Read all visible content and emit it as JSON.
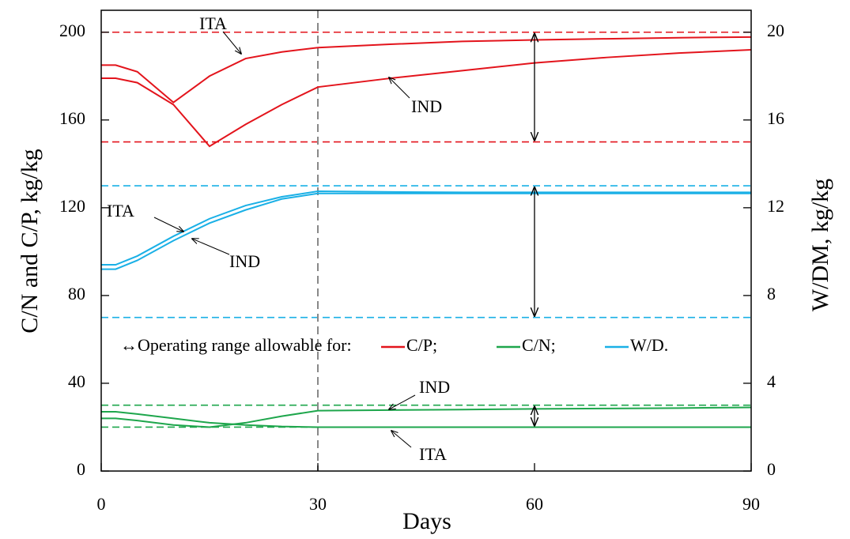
{
  "chart_data": {
    "type": "line",
    "x_label": "Days",
    "y_label": "C/N and C/P,  kg/kg",
    "y2_label": "W/DM, kg/kg",
    "x": [
      0,
      2,
      5,
      10,
      15,
      20,
      25,
      30,
      40,
      50,
      60,
      70,
      80,
      90
    ],
    "xlim": [
      0,
      90
    ],
    "xticks": [
      0,
      30,
      60,
      90
    ],
    "ylim": [
      0,
      210
    ],
    "yticks": [
      0,
      40,
      80,
      120,
      160,
      200
    ],
    "y2lim": [
      0,
      21
    ],
    "y2ticks": [
      0,
      4,
      8,
      12,
      16,
      20
    ],
    "series": [
      {
        "name": "ITA",
        "color": "#e3141c",
        "values": [
          185,
          185,
          182,
          168,
          180,
          188,
          191,
          193,
          194.5,
          195.8,
          196.5,
          197,
          197.5,
          197.8
        ]
      },
      {
        "name": "IND",
        "color": "#e3141c",
        "values": [
          179,
          179,
          177,
          167,
          148,
          158,
          167,
          175,
          179,
          182.5,
          186,
          188.5,
          190.5,
          192
        ]
      },
      {
        "name": "ITA",
        "color": "#1ab0e6",
        "axis": "y2",
        "values": [
          9.4,
          9.4,
          9.8,
          10.7,
          11.5,
          12.1,
          12.5,
          12.75,
          12.72,
          12.7,
          12.7,
          12.7,
          12.7,
          12.7
        ]
      },
      {
        "name": "IND",
        "color": "#1ab0e6",
        "axis": "y2",
        "values": [
          9.2,
          9.2,
          9.6,
          10.5,
          11.3,
          11.9,
          12.4,
          12.65,
          12.65,
          12.65,
          12.65,
          12.65,
          12.65,
          12.65
        ]
      },
      {
        "name": "IND",
        "color": "#1ea64c",
        "values": [
          24,
          24,
          23,
          21,
          20,
          22,
          25,
          27.5,
          27.8,
          28,
          28.3,
          28.5,
          28.7,
          29
        ]
      },
      {
        "name": "ITA",
        "color": "#1ea64c",
        "values": [
          27,
          27,
          26,
          24,
          22,
          21,
          20.3,
          20,
          20,
          20,
          20,
          20,
          20,
          20
        ]
      }
    ],
    "reference_lines": [
      {
        "value": 200,
        "color": "#e3141c"
      },
      {
        "value": 150,
        "color": "#e3141c"
      },
      {
        "value": 13,
        "axis": "y2",
        "color": "#1ab0e6"
      },
      {
        "value": 7,
        "axis": "y2",
        "color": "#1ab0e6"
      },
      {
        "value": 30,
        "color": "#1ea64c"
      },
      {
        "value": 20,
        "color": "#1ea64c"
      }
    ],
    "vertical_line": 30,
    "operating_ranges": [
      {
        "x": 60,
        "from": 150,
        "to": 200
      },
      {
        "x": 60,
        "from": 7,
        "to": 13,
        "axis": "y2"
      },
      {
        "x": 60,
        "from": 20,
        "to": 30
      }
    ],
    "legend": {
      "title": "↔Operating range allowable for:",
      "entries": [
        {
          "label": "C/P;",
          "color": "#e3141c"
        },
        {
          "label": "C/N;",
          "color": "#1ea64c"
        },
        {
          "label": "W/D.",
          "color": "#1ab0e6"
        }
      ]
    }
  }
}
